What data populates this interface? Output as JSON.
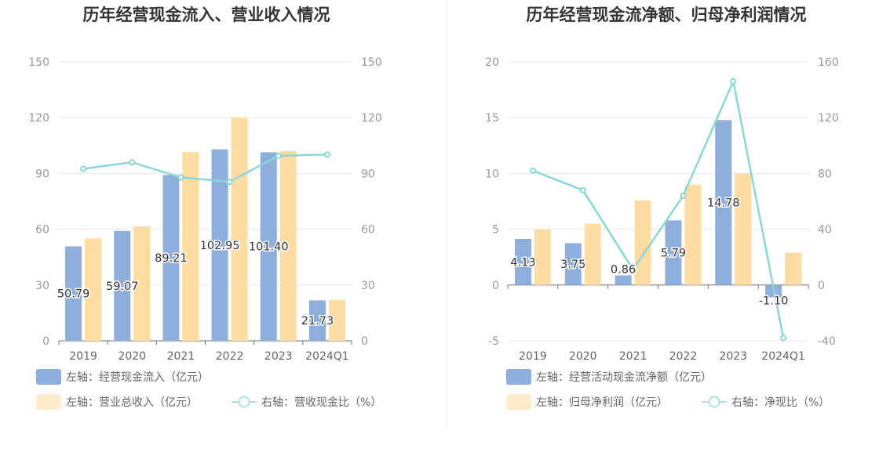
{
  "chart_data": [
    {
      "type": "bar",
      "title": "历年经营现金流入、营业收入情况",
      "categories": [
        "2019",
        "2020",
        "2021",
        "2022",
        "2023",
        "2024Q1"
      ],
      "ylim": [
        0,
        150
      ],
      "yticks": [
        0,
        30,
        60,
        90,
        120,
        150
      ],
      "y2lim": [
        0,
        150
      ],
      "y2ticks": [
        0,
        30,
        60,
        90,
        120,
        150
      ],
      "grid": true,
      "legend_position": "bottom-left",
      "series": [
        {
          "name": "左轴：经营现金流入（亿元）",
          "type": "bar",
          "axis": "left",
          "color": "#8eaedb",
          "values": [
            50.79,
            59.07,
            89.21,
            102.95,
            101.4,
            21.73
          ],
          "labels": [
            "50.79",
            "59.07",
            "89.21",
            "102.95",
            "101.40",
            "21.73"
          ]
        },
        {
          "name": "左轴：营业总收入（亿元）",
          "type": "bar",
          "axis": "left",
          "color": "#ffdca1",
          "values": [
            55.0,
            61.5,
            101.5,
            120.0,
            102.0,
            22.0
          ]
        },
        {
          "name": "右轴：营收现金比（%）",
          "type": "line",
          "axis": "right",
          "color": "#8ad6d8",
          "values": [
            92.5,
            96.0,
            87.9,
            85.5,
            99.5,
            100.2
          ]
        }
      ]
    },
    {
      "type": "bar",
      "title": "历年经营现金流净额、归母净利润情况",
      "categories": [
        "2019",
        "2020",
        "2021",
        "2022",
        "2023",
        "2024Q1"
      ],
      "ylim": [
        -5,
        20
      ],
      "yticks": [
        -5,
        0,
        5,
        10,
        15,
        20
      ],
      "y2lim": [
        -40,
        160
      ],
      "y2ticks": [
        -40,
        0,
        40,
        80,
        120,
        160
      ],
      "grid": true,
      "legend_position": "bottom-left",
      "series": [
        {
          "name": "左轴：经营活动现金流净额（亿元）",
          "type": "bar",
          "axis": "left",
          "color": "#8eaedb",
          "values": [
            4.13,
            3.75,
            0.86,
            5.79,
            14.78,
            -1.1
          ],
          "labels": [
            "4.13",
            "3.75",
            "0.86",
            "5.79",
            "14.78",
            "-1.10"
          ]
        },
        {
          "name": "左轴：归母净利润（亿元）",
          "type": "bar",
          "axis": "left",
          "color": "#ffdca1",
          "values": [
            5.0,
            5.5,
            7.6,
            9.0,
            10.0,
            2.9
          ]
        },
        {
          "name": "右轴：净现比（%）",
          "type": "line",
          "axis": "right",
          "color": "#8ad6d8",
          "values": [
            82.0,
            68.0,
            11.0,
            64.0,
            146.0,
            -38.0
          ]
        }
      ]
    }
  ]
}
